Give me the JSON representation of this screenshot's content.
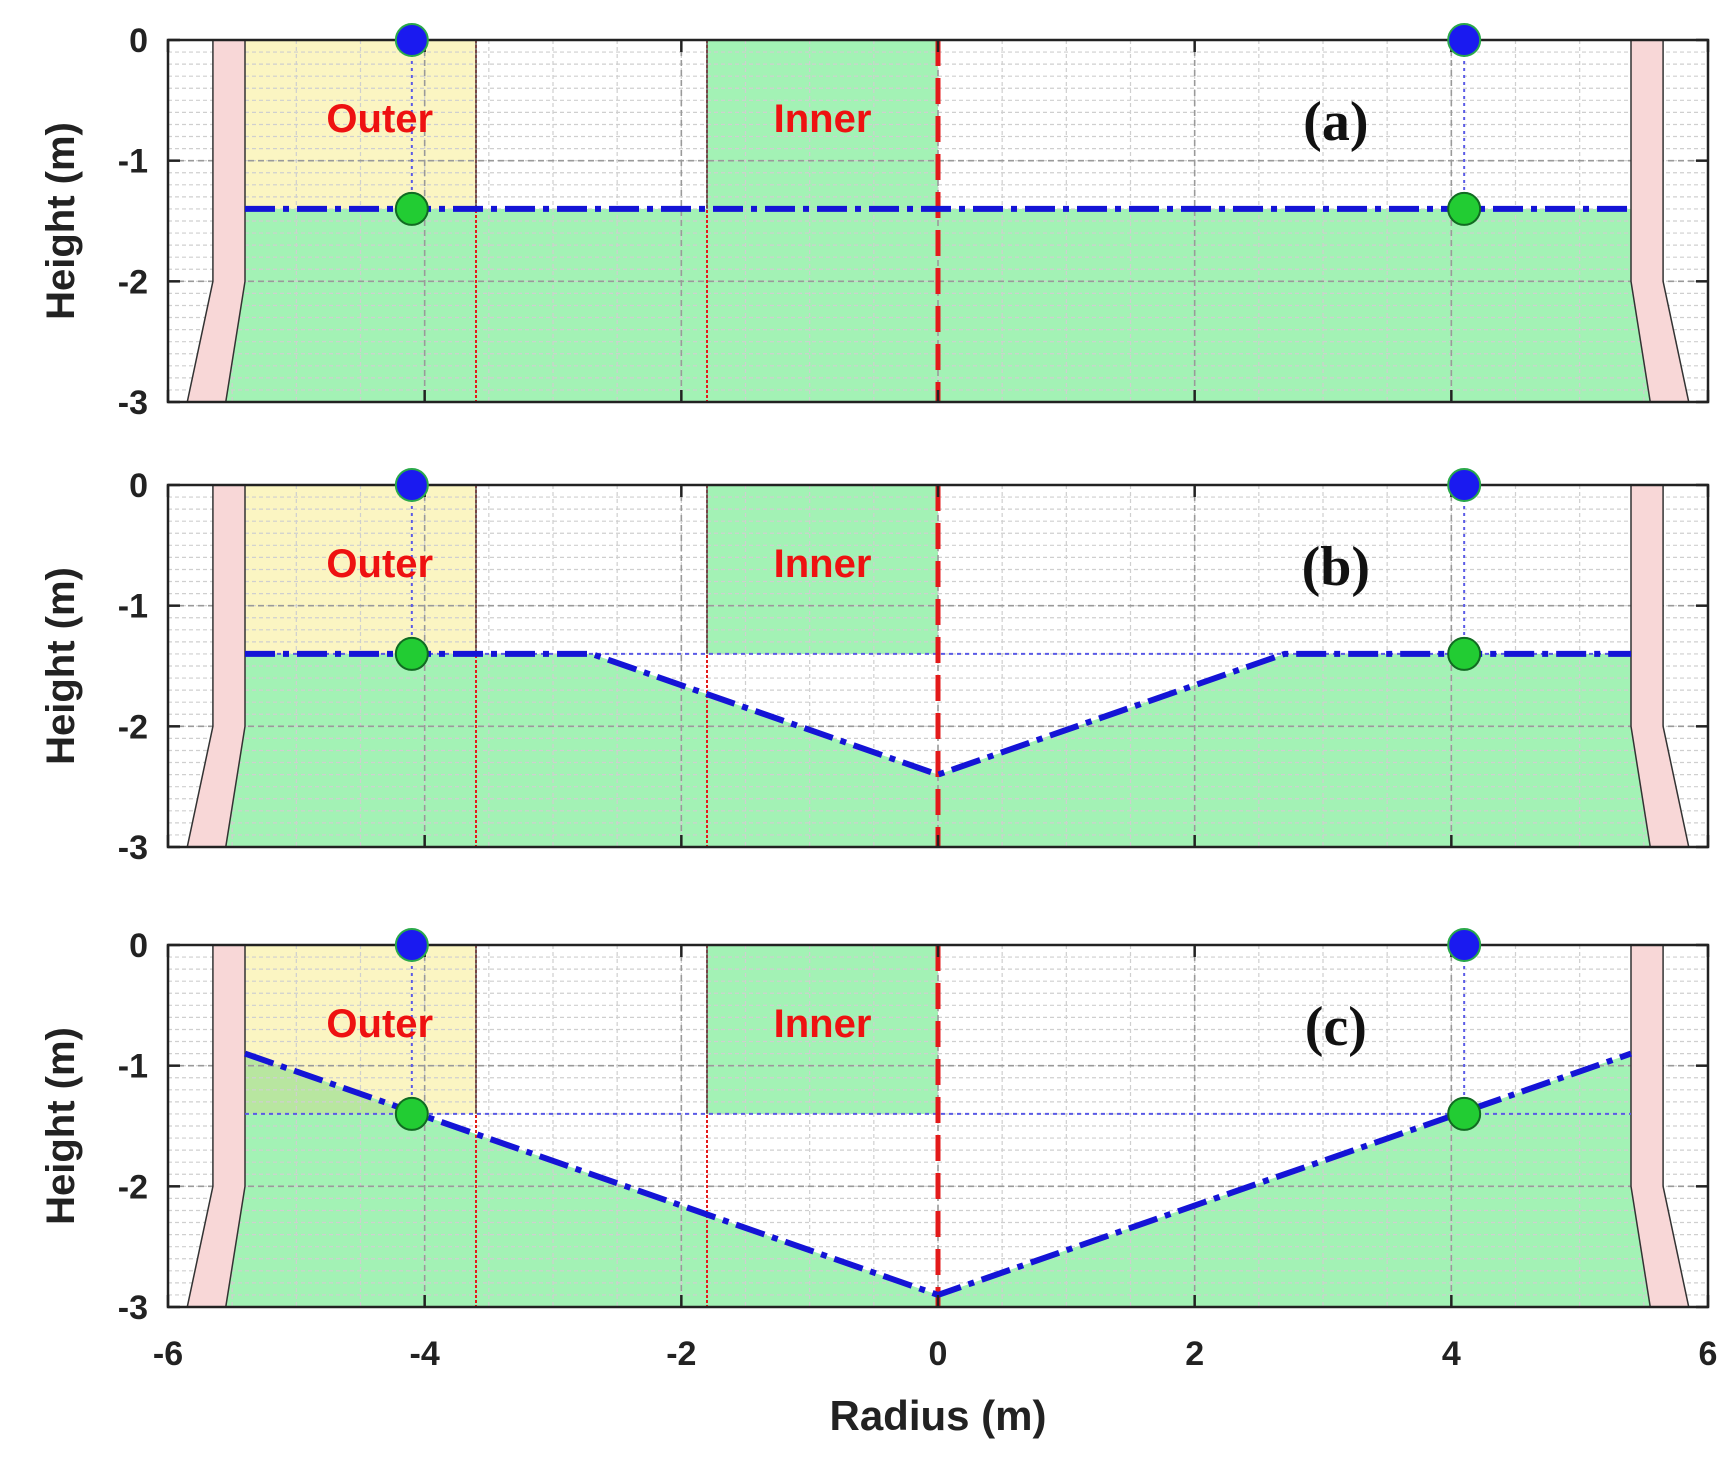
{
  "chart_data": {
    "type": "line",
    "figure": {
      "xlabel": "Radius (m)",
      "ylabel": "Height (m)",
      "xlim": [
        -6,
        6
      ],
      "ylim": [
        -3,
        0
      ],
      "xticks": [
        -6,
        -4,
        -2,
        0,
        2,
        4,
        6
      ],
      "yticks": [
        0,
        -1,
        -2,
        -3
      ],
      "grid": true,
      "minor_grid": true
    },
    "colors": {
      "axis": "#222222",
      "fill_green": "#a3f2b5",
      "fill_yellow": "#fbf5c2",
      "wall_pink": "#f8d7d7",
      "surface_line": "#1414d6",
      "ref_line": "#5a5ae6",
      "center_line": "#e31a1a",
      "region_label": "#ee1111",
      "sensor_blue": "#1a1af0",
      "sensor_green": "#22cc33"
    },
    "regions": {
      "outer": {
        "label": "Outer",
        "x_range": [
          -5.4,
          -3.6
        ]
      },
      "inner": {
        "label": "Inner",
        "x_range": [
          -1.8,
          0
        ]
      }
    },
    "wall": {
      "inner_x": [
        [
          0,
          -5.4
        ],
        [
          -2,
          -5.4
        ],
        [
          -3,
          -5.55
        ]
      ],
      "outer_x": [
        [
          0,
          -5.65
        ],
        [
          -2,
          -5.65
        ],
        [
          -3,
          -5.85
        ]
      ]
    },
    "reference_level": -1.4,
    "sensors_x": [
      -4.1,
      4.1
    ],
    "panels": [
      {
        "label": "(a)",
        "surface": {
          "x": [
            -5.4,
            5.4
          ],
          "y": [
            -1.4,
            -1.4
          ]
        },
        "sensor_bottom_y": -1.4
      },
      {
        "label": "(b)",
        "surface": {
          "x": [
            -5.4,
            -2.7,
            0,
            2.7,
            5.4
          ],
          "y": [
            -1.4,
            -1.4,
            -2.4,
            -1.4,
            -1.4
          ]
        },
        "sensor_bottom_y": -1.4
      },
      {
        "label": "(c)",
        "surface": {
          "x": [
            -5.4,
            0,
            5.4
          ],
          "y": [
            -0.9,
            -2.9,
            -0.9
          ]
        },
        "sensor_bottom_y": -1.4
      }
    ]
  }
}
